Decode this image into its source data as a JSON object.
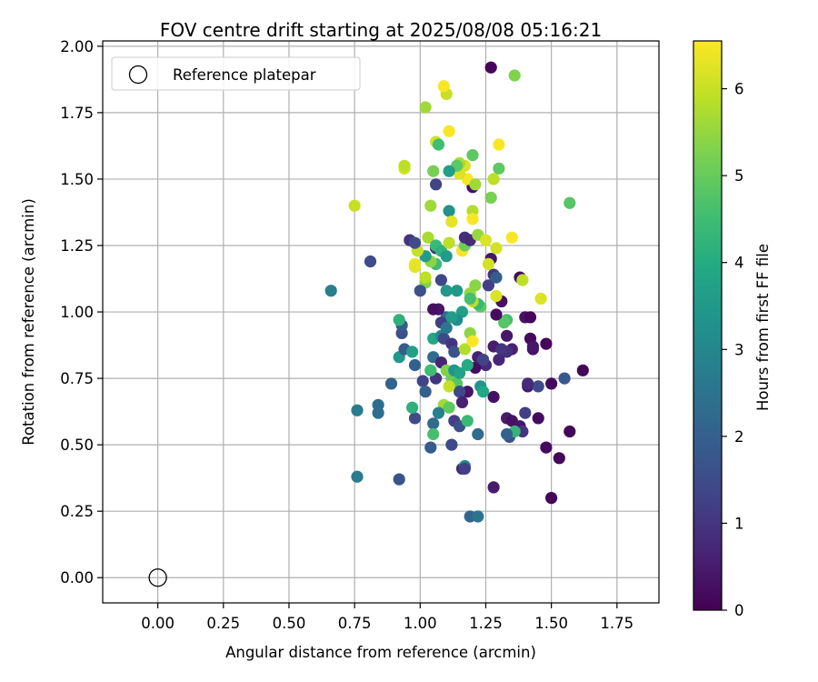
{
  "chart_data": {
    "type": "scatter",
    "title": "FOV centre drift starting at 2025/08/08 05:16:21",
    "xlabel": "Angular distance from reference (arcmin)",
    "ylabel": "Rotation from reference (arcmin)",
    "xlim": [
      -0.21,
      1.91
    ],
    "ylim": [
      -0.095,
      2.02
    ],
    "xticks": [
      "0.00",
      "0.25",
      "0.50",
      "0.75",
      "1.00",
      "1.25",
      "1.50",
      "1.75"
    ],
    "xtick_values": [
      0,
      0.25,
      0.5,
      0.75,
      1.0,
      1.25,
      1.5,
      1.75
    ],
    "yticks": [
      "0.00",
      "0.25",
      "0.50",
      "0.75",
      "1.00",
      "1.25",
      "1.50",
      "1.75",
      "2.00"
    ],
    "ytick_values": [
      0,
      0.25,
      0.5,
      0.75,
      1.0,
      1.25,
      1.5,
      1.75,
      2.0
    ],
    "grid": true,
    "legend": {
      "placement": "top-left",
      "entries": [
        "Reference platepar"
      ]
    },
    "reference_point": {
      "x": 0.0,
      "y": 0.0
    },
    "colorbar": {
      "label": "Hours from first FF file",
      "range": [
        0,
        6.55
      ],
      "ticks": [
        "0",
        "1",
        "2",
        "3",
        "4",
        "5",
        "6"
      ],
      "tick_values": [
        0,
        1,
        2,
        3,
        4,
        5,
        6
      ],
      "colormap": "viridis"
    },
    "points": [
      [
        1.27,
        1.92,
        0.1
      ],
      [
        1.2,
        1.47,
        0.3
      ],
      [
        1.38,
        1.13,
        0.2
      ],
      [
        1.4,
        0.98,
        0.3
      ],
      [
        1.42,
        0.98,
        0.1
      ],
      [
        1.33,
        0.91,
        0.4
      ],
      [
        1.42,
        0.9,
        0.2
      ],
      [
        1.48,
        0.88,
        0.1
      ],
      [
        1.43,
        0.86,
        0.3
      ],
      [
        1.35,
        0.86,
        0.6
      ],
      [
        1.33,
        0.85,
        0.9
      ],
      [
        1.3,
        0.82,
        0.7
      ],
      [
        1.28,
        0.87,
        0.5
      ],
      [
        1.25,
        0.8,
        0.8
      ],
      [
        1.21,
        0.79,
        0.2
      ],
      [
        1.18,
        0.7,
        0.4
      ],
      [
        1.28,
        0.68,
        0.3
      ],
      [
        1.62,
        0.78,
        0.1
      ],
      [
        1.5,
        0.73,
        0.2
      ],
      [
        1.41,
        0.72,
        0.5
      ],
      [
        1.45,
        0.72,
        1.5
      ],
      [
        1.55,
        0.75,
        1.8
      ],
      [
        1.4,
        0.62,
        1.2
      ],
      [
        1.33,
        0.6,
        0.5
      ],
      [
        1.35,
        0.59,
        0.3
      ],
      [
        1.38,
        0.57,
        0.4
      ],
      [
        1.45,
        0.6,
        0.2
      ],
      [
        1.57,
        0.55,
        0.1
      ],
      [
        1.39,
        0.55,
        1.0
      ],
      [
        1.34,
        0.53,
        1.6
      ],
      [
        1.48,
        0.49,
        0.2
      ],
      [
        1.53,
        0.45,
        0.1
      ],
      [
        1.5,
        0.3,
        0.1
      ],
      [
        1.28,
        0.34,
        0.5
      ],
      [
        1.16,
        0.41,
        0.7
      ],
      [
        1.22,
        0.54,
        2.3
      ],
      [
        1.12,
        0.5,
        1.4
      ],
      [
        1.13,
        0.59,
        1.2
      ],
      [
        1.04,
        0.49,
        1.9
      ],
      [
        0.98,
        0.6,
        1.5
      ],
      [
        0.92,
        0.37,
        1.7
      ],
      [
        0.76,
        0.38,
        2.7
      ],
      [
        0.76,
        0.63,
        2.7
      ],
      [
        0.84,
        0.65,
        2.3
      ],
      [
        0.84,
        0.62,
        2.3
      ],
      [
        0.89,
        0.73,
        2.1
      ],
      [
        0.92,
        0.83,
        3.5
      ],
      [
        0.93,
        0.92,
        1.6
      ],
      [
        0.93,
        0.95,
        1.9
      ],
      [
        0.94,
        0.86,
        1.9
      ],
      [
        0.97,
        0.85,
        3.7
      ],
      [
        0.98,
        0.8,
        2.0
      ],
      [
        1.01,
        0.74,
        1.3
      ],
      [
        1.02,
        0.7,
        2.0
      ],
      [
        1.04,
        0.78,
        4.0
      ],
      [
        1.05,
        0.83,
        2.3
      ],
      [
        1.06,
        0.75,
        1.0
      ],
      [
        1.08,
        0.81,
        0.7
      ],
      [
        1.05,
        0.9,
        3.9
      ],
      [
        1.08,
        0.91,
        3.0
      ],
      [
        1.1,
        0.98,
        2.2
      ],
      [
        1.08,
        0.96,
        1.2
      ],
      [
        1.09,
        0.9,
        1.4
      ],
      [
        1.12,
        0.88,
        1.0
      ],
      [
        1.13,
        0.85,
        1.7
      ],
      [
        1.1,
        0.78,
        5.3
      ],
      [
        1.12,
        0.75,
        5.1
      ],
      [
        1.14,
        0.73,
        4.8
      ],
      [
        1.15,
        0.7,
        1.4
      ],
      [
        1.16,
        0.66,
        0.6
      ],
      [
        1.11,
        0.72,
        6.0
      ],
      [
        1.09,
        0.65,
        5.6
      ],
      [
        1.07,
        0.62,
        2.8
      ],
      [
        1.05,
        0.58,
        2.3
      ],
      [
        1.11,
        0.64,
        4.9
      ],
      [
        1.15,
        0.57,
        1.6
      ],
      [
        1.18,
        0.59,
        4.4
      ],
      [
        1.17,
        0.42,
        3.0
      ],
      [
        1.19,
        0.23,
        2.1
      ],
      [
        1.22,
        0.23,
        2.5
      ],
      [
        1.04,
        0.78,
        4.5
      ],
      [
        1.13,
        0.78,
        3.4
      ],
      [
        1.15,
        0.77,
        3.8
      ],
      [
        1.18,
        0.8,
        4.0
      ],
      [
        1.22,
        0.83,
        0.6
      ],
      [
        1.24,
        0.82,
        1.3
      ],
      [
        1.23,
        0.72,
        3.3
      ],
      [
        1.24,
        0.7,
        3.9
      ],
      [
        1.31,
        0.86,
        1.0
      ],
      [
        1.33,
        0.97,
        4.6
      ],
      [
        1.32,
        0.96,
        4.8
      ],
      [
        1.29,
        0.99,
        0.2
      ],
      [
        1.31,
        1.04,
        0.3
      ],
      [
        1.26,
        1.1,
        1.2
      ],
      [
        1.28,
        1.14,
        1.0
      ],
      [
        1.27,
        1.2,
        0.4
      ],
      [
        1.29,
        1.13,
        1.9
      ],
      [
        1.29,
        1.06,
        6.2
      ],
      [
        1.23,
        1.02,
        4.9
      ],
      [
        1.22,
        1.03,
        4.4
      ],
      [
        1.2,
        1.04,
        5.9
      ],
      [
        1.19,
        1.07,
        5.5
      ],
      [
        1.21,
        1.1,
        5.4
      ],
      [
        1.19,
        1.05,
        4.6
      ],
      [
        1.16,
        1.0,
        3.7
      ],
      [
        1.14,
        0.97,
        3.2
      ],
      [
        1.12,
        0.98,
        3.6
      ],
      [
        1.1,
        0.94,
        2.6
      ],
      [
        1.07,
        1.01,
        0.4
      ],
      [
        1.05,
        1.01,
        0.3
      ],
      [
        1.1,
        1.08,
        3.5
      ],
      [
        1.14,
        1.08,
        3.5
      ],
      [
        1.08,
        1.12,
        1.4
      ],
      [
        1.06,
        1.18,
        4.5
      ],
      [
        1.06,
        1.24,
        0.9
      ],
      [
        1.04,
        1.19,
        5.4
      ],
      [
        1.02,
        1.21,
        3.6
      ],
      [
        1.02,
        1.11,
        5.3
      ],
      [
        1.02,
        1.13,
        5.9
      ],
      [
        1.0,
        1.08,
        1.6
      ],
      [
        0.98,
        1.18,
        6.4
      ],
      [
        0.98,
        1.17,
        6.3
      ],
      [
        0.99,
        1.23,
        6.0
      ],
      [
        0.96,
        1.27,
        1.0
      ],
      [
        0.98,
        1.26,
        1.5
      ],
      [
        1.03,
        1.28,
        5.7
      ],
      [
        1.06,
        1.25,
        4.4
      ],
      [
        1.08,
        1.23,
        4.2
      ],
      [
        1.1,
        1.21,
        3.6
      ],
      [
        1.11,
        1.26,
        5.9
      ],
      [
        1.16,
        1.23,
        6.5
      ],
      [
        1.17,
        1.25,
        5.1
      ],
      [
        1.17,
        1.28,
        0.9
      ],
      [
        1.19,
        1.27,
        0.8
      ],
      [
        1.22,
        1.29,
        5.5
      ],
      [
        1.25,
        1.27,
        6.2
      ],
      [
        1.29,
        1.24,
        6.1
      ],
      [
        1.35,
        1.28,
        6.5
      ],
      [
        1.39,
        1.12,
        5.9
      ],
      [
        1.46,
        1.05,
        6.2
      ],
      [
        1.57,
        1.41,
        4.8
      ],
      [
        1.36,
        1.89,
        5.3
      ],
      [
        1.27,
        1.43,
        5.2
      ],
      [
        1.3,
        1.54,
        4.9
      ],
      [
        1.28,
        1.5,
        5.9
      ],
      [
        1.3,
        1.63,
        6.5
      ],
      [
        1.2,
        1.59,
        4.9
      ],
      [
        1.17,
        1.55,
        6.2
      ],
      [
        1.18,
        1.5,
        6.5
      ],
      [
        1.15,
        1.52,
        6.2
      ],
      [
        1.15,
        1.56,
        5.7
      ],
      [
        1.14,
        1.55,
        4.9
      ],
      [
        1.11,
        1.53,
        3.7
      ],
      [
        1.11,
        1.68,
        6.5
      ],
      [
        1.1,
        1.82,
        6.0
      ],
      [
        1.09,
        1.85,
        6.5
      ],
      [
        1.06,
        1.64,
        6.1
      ],
      [
        1.05,
        1.53,
        5.2
      ],
      [
        1.06,
        1.48,
        1.3
      ],
      [
        1.07,
        1.63,
        4.5
      ],
      [
        1.02,
        1.77,
        5.6
      ],
      [
        0.94,
        1.54,
        6.1
      ],
      [
        0.94,
        1.55,
        5.9
      ],
      [
        0.75,
        1.4,
        6.0
      ],
      [
        1.04,
        1.4,
        5.6
      ],
      [
        1.11,
        1.38,
        3.3
      ],
      [
        1.12,
        1.34,
        6.3
      ],
      [
        1.2,
        1.38,
        5.8
      ],
      [
        1.2,
        1.35,
        6.5
      ],
      [
        1.21,
        1.48,
        5.6
      ],
      [
        0.81,
        1.19,
        1.5
      ],
      [
        0.66,
        1.08,
        2.8
      ],
      [
        0.92,
        0.97,
        4.2
      ],
      [
        0.97,
        0.64,
        4.2
      ],
      [
        1.17,
        0.86,
        5.8
      ],
      [
        1.19,
        0.92,
        5.4
      ],
      [
        1.2,
        0.89,
        6.5
      ],
      [
        1.26,
        1.18,
        6.1
      ],
      [
        1.36,
        0.55,
        4.3
      ],
      [
        1.33,
        0.54,
        2.0
      ],
      [
        1.05,
        0.54,
        4.6
      ],
      [
        1.17,
        0.41,
        1.2
      ],
      [
        1.43,
        0.87,
        0.4
      ],
      [
        1.41,
        0.73,
        0.8
      ]
    ]
  }
}
